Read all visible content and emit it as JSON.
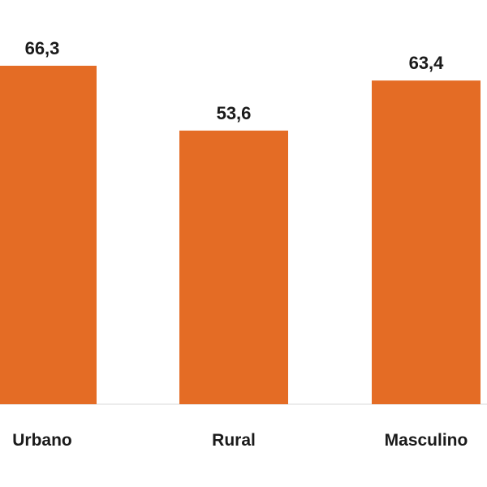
{
  "colors": {
    "bar": "#E46C25",
    "text": "#1a1a1a",
    "background": "#ffffff"
  },
  "chart_data": {
    "type": "bar",
    "categories": [
      "Urbano",
      "Rural",
      "Masculino"
    ],
    "values": [
      66.3,
      53.6,
      63.4
    ],
    "data_labels": [
      "66,3",
      "53,6",
      "63,4"
    ],
    "title": "",
    "xlabel": "",
    "ylabel": "",
    "ylim": [
      0,
      80
    ],
    "grid": false,
    "legend": "none"
  }
}
